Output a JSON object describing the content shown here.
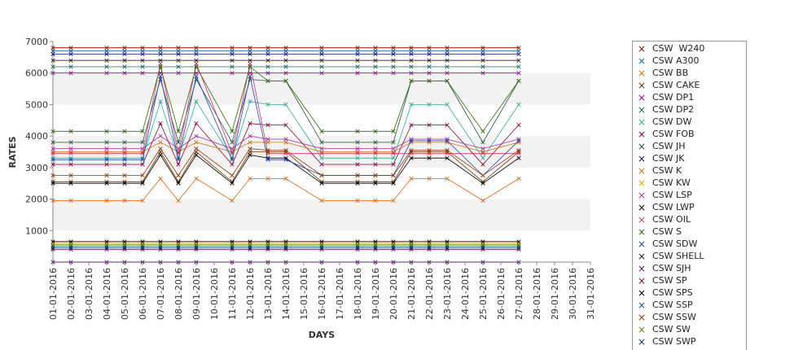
{
  "chart_data": {
    "type": "line",
    "title": "",
    "xlabel": "DAYS",
    "ylabel": "RATES",
    "ylim": [
      0,
      7000
    ],
    "yticks": [
      1000,
      2000,
      3000,
      4000,
      5000,
      6000,
      7000
    ],
    "grid": "alternating horizontal bands",
    "legend_position": "right",
    "x_tick_labels": [
      "01-01-2016",
      "02-01-2016",
      "03-01-2016",
      "04-01-2016",
      "05-01-2016",
      "06-01-2016",
      "07-01-2016",
      "08-01-2016",
      "09-01-2016",
      "10-01-2016",
      "11-01-2016",
      "12-01-2016",
      "13-01-2016",
      "14-01-2016",
      "15-01-2016",
      "16-01-2016",
      "17-01-2016",
      "18-01-2016",
      "19-01-2016",
      "20-01-2016",
      "21-01-2016",
      "22-01-2016",
      "23-01-2016",
      "24-01-2016",
      "25-01-2016",
      "26-01-2016",
      "27-01-2016",
      "28-01-2016",
      "29-01-2016",
      "30-01-2016",
      "31-01-2016"
    ],
    "x": [
      "01-01-2016",
      "02-01-2016",
      "04-01-2016",
      "05-01-2016",
      "06-01-2016",
      "07-01-2016",
      "08-01-2016",
      "09-01-2016",
      "11-01-2016",
      "12-01-2016",
      "13-01-2016",
      "14-01-2016",
      "16-01-2016",
      "18-01-2016",
      "19-01-2016",
      "20-01-2016",
      "21-01-2016",
      "22-01-2016",
      "23-01-2016",
      "25-01-2016",
      "27-01-2016"
    ],
    "series": [
      {
        "name": "CSW  W240",
        "color": "#990000",
        "values": [
          6800,
          6800,
          6800,
          6800,
          6800,
          6800,
          6800,
          6800,
          6800,
          6800,
          6800,
          6800,
          6800,
          6800,
          6800,
          6800,
          6800,
          6800,
          6800,
          6800,
          6800
        ]
      },
      {
        "name": "CSW A300",
        "color": "#0066aa",
        "values": [
          6700,
          6700,
          6700,
          6700,
          6700,
          6700,
          6700,
          6700,
          6700,
          6700,
          6700,
          6700,
          6700,
          6700,
          6700,
          6700,
          6700,
          6700,
          6700,
          6700,
          6700
        ]
      },
      {
        "name": "CSW BB",
        "color": "#dd6611",
        "values": [
          1950,
          1950,
          1950,
          1950,
          1950,
          2650,
          1950,
          2650,
          1950,
          2650,
          2650,
          2650,
          1950,
          1950,
          1950,
          1950,
          2650,
          2650,
          2650,
          1950,
          2650
        ]
      },
      {
        "name": "CSW CAKE",
        "color": "#663300",
        "values": [
          2550,
          2550,
          2550,
          2550,
          2550,
          3500,
          2550,
          3500,
          2550,
          3500,
          3500,
          3500,
          2550,
          2550,
          2550,
          2550,
          3500,
          3500,
          3500,
          2550,
          3500
        ]
      },
      {
        "name": "CSW DP1",
        "color": "#990099",
        "values": [
          6000,
          6000,
          6000,
          6000,
          6000,
          6000,
          6000,
          6000,
          6000,
          6000,
          6000,
          6000,
          6000,
          6000,
          6000,
          6000,
          6000,
          6000,
          6000,
          6000,
          6000
        ]
      },
      {
        "name": "CSW DP2",
        "color": "#116655",
        "values": [
          6200,
          6200,
          6200,
          6200,
          6200,
          6200,
          6200,
          6200,
          6200,
          6200,
          6200,
          6200,
          6200,
          6200,
          6200,
          6200,
          6200,
          6200,
          6200,
          6200,
          6200
        ]
      },
      {
        "name": "CSW DW",
        "color": "#33aa99",
        "values": [
          3300,
          3300,
          3300,
          3300,
          3300,
          5100,
          3300,
          5100,
          3300,
          5100,
          5000,
          5000,
          3300,
          3300,
          3300,
          3300,
          5000,
          5000,
          5000,
          3300,
          5000
        ]
      },
      {
        "name": "CSW FOB",
        "color": "#880033",
        "values": [
          3100,
          3100,
          3100,
          3100,
          3100,
          4400,
          3100,
          4400,
          3100,
          4400,
          4350,
          4350,
          3100,
          3100,
          3100,
          3100,
          4350,
          4350,
          4350,
          3100,
          4350
        ]
      },
      {
        "name": "CSW JH",
        "color": "#225544",
        "values": [
          3800,
          3800,
          3800,
          3800,
          3800,
          5800,
          3800,
          5800,
          3800,
          5800,
          5750,
          5750,
          3800,
          3800,
          3800,
          3800,
          5750,
          5750,
          5750,
          3800,
          5750
        ]
      },
      {
        "name": "CSW JK",
        "color": "#111177",
        "values": [
          6600,
          6600,
          6600,
          6600,
          6600,
          6600,
          6600,
          6600,
          6600,
          6600,
          6600,
          6600,
          6600,
          6600,
          6600,
          6600,
          6600,
          6600,
          6600,
          6600,
          6600
        ]
      },
      {
        "name": "CSW K",
        "color": "#cc7700",
        "values": [
          3500,
          3500,
          3500,
          3500,
          3500,
          3800,
          3500,
          3800,
          3500,
          3800,
          3800,
          3800,
          3500,
          3500,
          3500,
          3500,
          3800,
          3800,
          3800,
          3500,
          3800
        ]
      },
      {
        "name": "CSW KW",
        "color": "#ddaa00",
        "values": [
          600,
          600,
          600,
          600,
          600,
          600,
          600,
          600,
          600,
          600,
          600,
          600,
          600,
          600,
          600,
          600,
          600,
          600,
          600,
          600,
          600
        ]
      },
      {
        "name": "CSW LSP",
        "color": "#aa3399",
        "values": [
          3600,
          3600,
          3600,
          3600,
          3600,
          4000,
          3600,
          4000,
          3600,
          4000,
          3900,
          3900,
          3600,
          3600,
          3600,
          3600,
          3900,
          3900,
          3900,
          3600,
          3900
        ]
      },
      {
        "name": "CSW LWP",
        "color": "#000000",
        "values": [
          2500,
          2500,
          2500,
          2500,
          2500,
          3400,
          2500,
          3400,
          2500,
          3400,
          3300,
          3300,
          2500,
          2500,
          2500,
          2500,
          3300,
          3300,
          3300,
          2500,
          3300
        ]
      },
      {
        "name": "CSW OIL",
        "color": "#cc3366",
        "values": [
          3450,
          3450,
          3450,
          3450,
          3450,
          6300,
          3450,
          6300,
          3450,
          6300,
          3450,
          3450,
          3450,
          3450,
          3450,
          3450,
          3450,
          3450,
          3450,
          3450,
          3450
        ]
      },
      {
        "name": "CSW S",
        "color": "#336600",
        "values": [
          4150,
          4150,
          4150,
          4150,
          4150,
          6200,
          4150,
          6200,
          4150,
          6200,
          5750,
          5750,
          4150,
          4150,
          4150,
          4150,
          5750,
          5750,
          5750,
          4150,
          5750
        ]
      },
      {
        "name": "CSW SDW",
        "color": "#2244aa",
        "values": [
          3250,
          3250,
          3250,
          3250,
          3250,
          5900,
          3250,
          5900,
          3250,
          5900,
          3250,
          3250,
          2750,
          2750,
          2750,
          2750,
          3850,
          3850,
          3850,
          2750,
          3850
        ]
      },
      {
        "name": "CSW SHELL",
        "color": "#222222",
        "values": [
          6400,
          6400,
          6400,
          6400,
          6400,
          6400,
          6400,
          6400,
          6400,
          6400,
          6400,
          6400,
          6400,
          6400,
          6400,
          6400,
          6400,
          6400,
          6400,
          6400,
          6400
        ]
      },
      {
        "name": "CSW SJH",
        "color": "#551166",
        "values": [
          0,
          0,
          0,
          0,
          0,
          0,
          0,
          0,
          0,
          0,
          0,
          0,
          0,
          0,
          0,
          0,
          0,
          0,
          0,
          0,
          0
        ]
      },
      {
        "name": "CSW SP",
        "color": "#770033",
        "values": [
          400,
          400,
          400,
          400,
          400,
          400,
          400,
          400,
          400,
          400,
          400,
          400,
          400,
          400,
          400,
          400,
          400,
          400,
          400,
          400,
          400
        ]
      },
      {
        "name": "CSW SPS",
        "color": "#000000",
        "values": [
          650,
          650,
          650,
          650,
          650,
          650,
          650,
          650,
          650,
          650,
          650,
          650,
          650,
          650,
          650,
          650,
          650,
          650,
          650,
          650,
          650
        ]
      },
      {
        "name": "CSW SSP",
        "color": "#115588",
        "values": [
          500,
          500,
          500,
          500,
          500,
          500,
          500,
          500,
          500,
          500,
          500,
          500,
          500,
          500,
          500,
          500,
          500,
          500,
          500,
          500,
          500
        ]
      },
      {
        "name": "CSW SSW",
        "color": "#993300",
        "values": [
          2750,
          2750,
          2750,
          2750,
          2750,
          3600,
          2750,
          3600,
          2750,
          3600,
          3550,
          3550,
          2750,
          2750,
          2750,
          2750,
          3550,
          3550,
          3550,
          2750,
          3550
        ]
      },
      {
        "name": "CSW SW",
        "color": "#558800",
        "values": [
          550,
          550,
          550,
          550,
          550,
          550,
          550,
          550,
          550,
          550,
          550,
          550,
          550,
          550,
          550,
          550,
          550,
          550,
          550,
          550,
          550
        ]
      },
      {
        "name": "CSW SWP",
        "color": "#003366",
        "values": [
          450,
          450,
          450,
          450,
          450,
          450,
          450,
          450,
          450,
          450,
          450,
          450,
          450,
          450,
          450,
          450,
          450,
          450,
          450,
          450,
          450
        ]
      }
    ]
  }
}
